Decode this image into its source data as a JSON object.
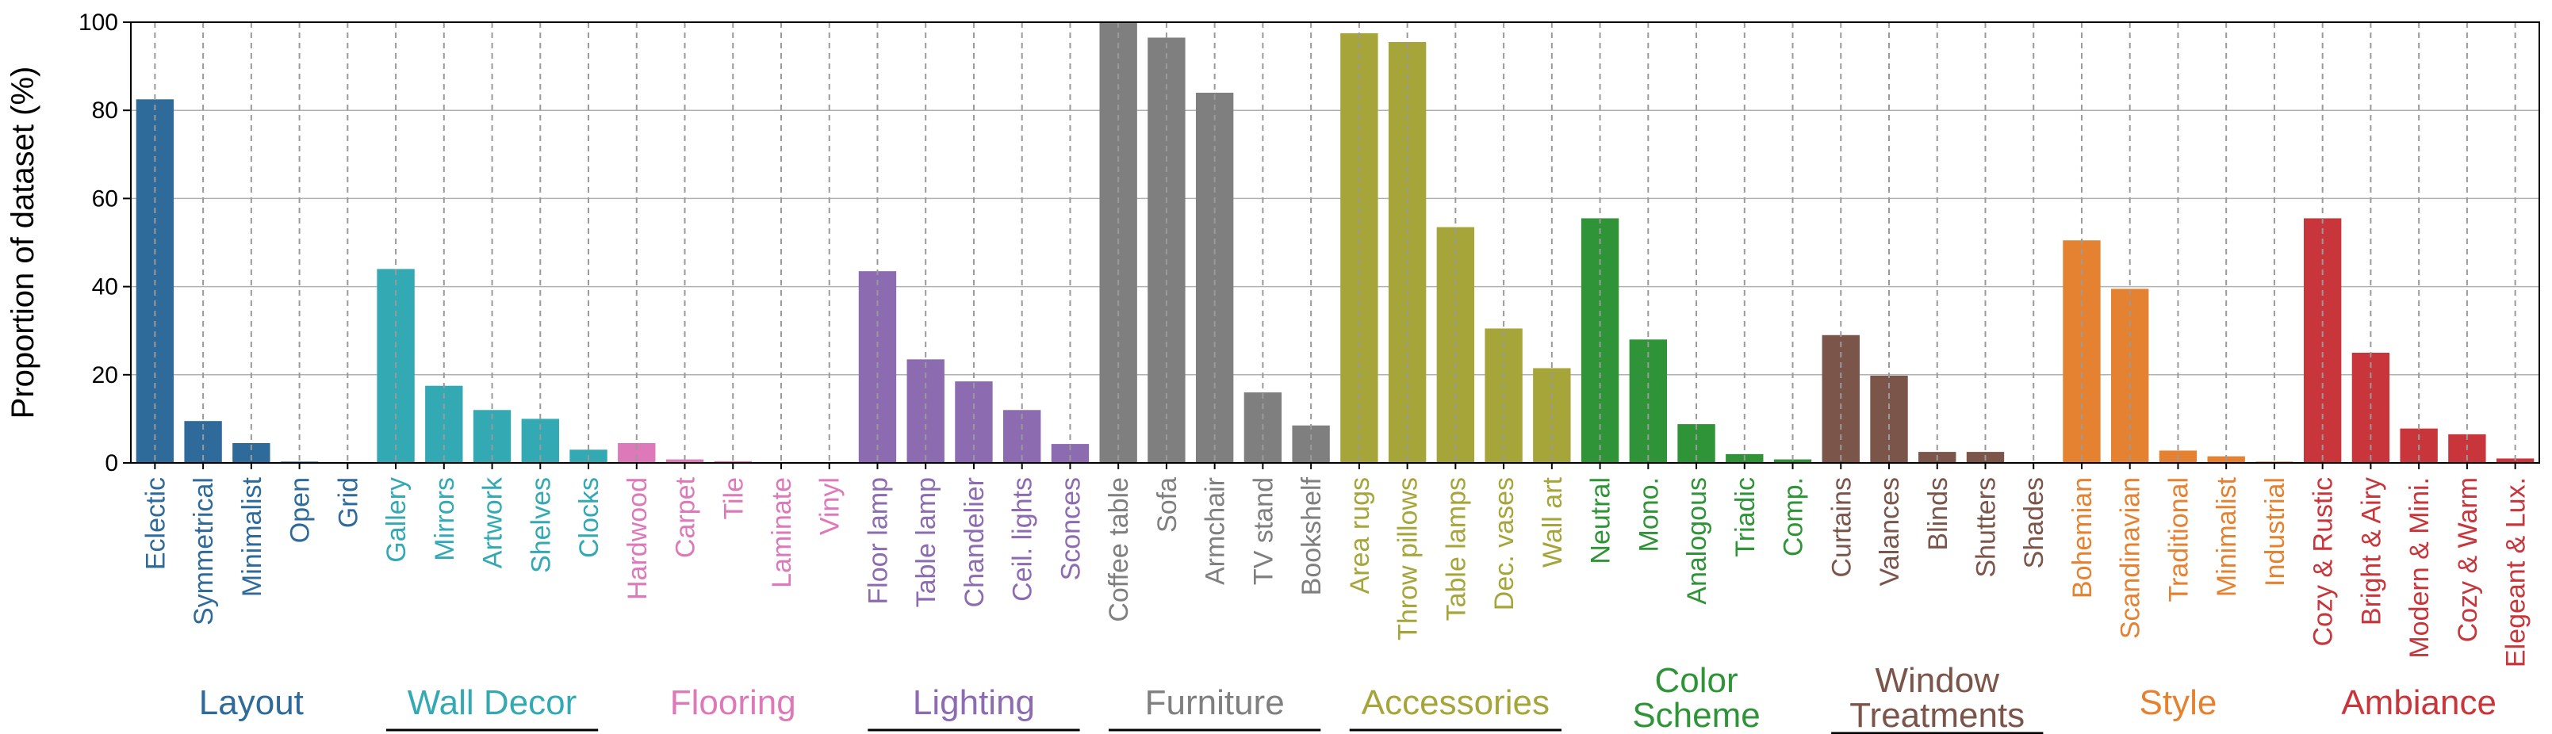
{
  "chart_data": {
    "type": "bar",
    "title": "",
    "xlabel": "",
    "ylabel": "Proportion of dataset (%)",
    "ylim": [
      0,
      100
    ],
    "yticks": [
      0,
      20,
      40,
      60,
      80,
      100
    ],
    "grid": {
      "horizontal": true,
      "vertical_dashed": true
    },
    "categories": [
      "Eclectic",
      "Symmetrical",
      "Minimalist",
      "Open",
      "Grid",
      "Gallery",
      "Mirrors",
      "Artwork",
      "Shelves",
      "Clocks",
      "Hardwood",
      "Carpet",
      "Tile",
      "Laminate",
      "Vinyl",
      "Floor lamp",
      "Table lamp",
      "Chandelier",
      "Ceil. lights",
      "Sconces",
      "Coffee table",
      "Sofa",
      "Armchair",
      "TV stand",
      "Bookshelf",
      "Area rugs",
      "Throw pillows",
      "Table lamps",
      "Dec. vases",
      "Wall art",
      "Neutral",
      "Mono.",
      "Analogous",
      "Triadic",
      "Comp.",
      "Curtains",
      "Valances",
      "Blinds",
      "Shutters",
      "Shades",
      "Bohemian",
      "Scandinavian",
      "Traditional",
      "Minimalist",
      "Industrial",
      "Cozy & Rustic",
      "Bright & Airy",
      "Modern & Mini.",
      "Cozy & Warm",
      "Elegeant & Lux."
    ],
    "values": [
      82.5,
      9.5,
      4.5,
      0.3,
      0,
      44,
      17.5,
      12,
      10,
      3,
      4.5,
      0.8,
      0.4,
      0,
      0,
      43.5,
      23.5,
      18.5,
      12,
      4.3,
      100,
      96.5,
      84,
      16,
      8.5,
      97.5,
      95.5,
      53.5,
      30.5,
      21.5,
      55.5,
      28,
      8.8,
      2,
      0.8,
      29,
      19.8,
      2.5,
      2.5,
      0,
      50.5,
      39.5,
      2.8,
      1.5,
      0.3,
      55.5,
      25,
      7.8,
      6.5,
      1
    ],
    "groups": [
      {
        "name": "Layout",
        "lines": [
          "Layout"
        ],
        "start": 0,
        "count": 5,
        "color": "#2f6b9a",
        "underline": false
      },
      {
        "name": "Wall Decor",
        "lines": [
          "Wall Decor"
        ],
        "start": 5,
        "count": 5,
        "color": "#33a9b4",
        "underline": true
      },
      {
        "name": "Flooring",
        "lines": [
          "Flooring"
        ],
        "start": 10,
        "count": 5,
        "color": "#dd79b9",
        "underline": false
      },
      {
        "name": "Lighting",
        "lines": [
          "Lighting"
        ],
        "start": 15,
        "count": 5,
        "color": "#8c6bb1",
        "underline": true
      },
      {
        "name": "Furniture",
        "lines": [
          "Furniture"
        ],
        "start": 20,
        "count": 5,
        "color": "#7f7f7f",
        "underline": true
      },
      {
        "name": "Accessories",
        "lines": [
          "Accessories"
        ],
        "start": 25,
        "count": 5,
        "color": "#a6a53a",
        "underline": true
      },
      {
        "name": "Color Scheme",
        "lines": [
          "Color",
          "Scheme"
        ],
        "start": 30,
        "count": 5,
        "color": "#2f9437",
        "underline": false
      },
      {
        "name": "Window Treatments",
        "lines": [
          "Window",
          "Treatments"
        ],
        "start": 35,
        "count": 5,
        "color": "#7b544a",
        "underline": true
      },
      {
        "name": "Style",
        "lines": [
          "Style"
        ],
        "start": 40,
        "count": 5,
        "color": "#e58231",
        "underline": false
      },
      {
        "name": "Ambiance",
        "lines": [
          "Ambiance"
        ],
        "start": 45,
        "count": 5,
        "color": "#c8353b",
        "underline": false
      }
    ]
  }
}
